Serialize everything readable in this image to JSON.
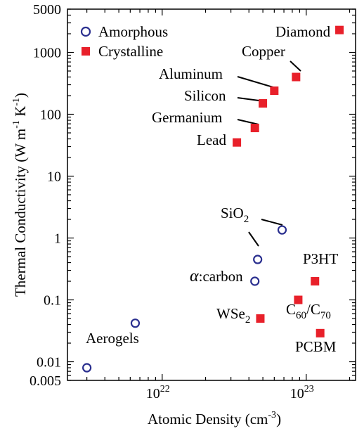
{
  "chart_data": {
    "type": "scatter",
    "xlabel": "Atomic Density (cm",
    "xlabel_exp": "-3",
    "xlabel_close": ")",
    "ylabel": "Thermal Conductivity (W m",
    "ylabel_exp1": "-1",
    "ylabel_mid": " K",
    "ylabel_exp2": "-1",
    "ylabel_close": ")",
    "x_scale": "log",
    "y_scale": "log",
    "xlim": [
      2.2e+21,
      2.2e+23
    ],
    "ylim": [
      0.005,
      5000
    ],
    "x_tick_values": [
      1e+22,
      1e+23
    ],
    "x_ticks": [
      {
        "base": "10",
        "exp": "22"
      },
      {
        "base": "10",
        "exp": "23"
      }
    ],
    "y_tick_values": [
      0.005,
      0.01,
      0.1,
      1,
      10,
      100,
      1000,
      5000
    ],
    "y_ticks": [
      "0.005",
      "0.01",
      "0.1",
      "1",
      "10",
      "100",
      "1000",
      "5000"
    ],
    "grid": false,
    "legend_position": "top-left",
    "series": [
      {
        "name": "Amorphous",
        "marker": "open-circle",
        "color": "#2a2f8f",
        "points": [
          {
            "x": 3e+21,
            "y": 0.008,
            "label": "Aerogels"
          },
          {
            "x": 6.5e+21,
            "y": 0.042,
            "label": ""
          },
          {
            "x": 4.4e+22,
            "y": 0.2,
            "label": "α:carbon"
          },
          {
            "x": 4.6e+22,
            "y": 0.45,
            "label": ""
          },
          {
            "x": 6.8e+22,
            "y": 1.35,
            "label": "SiO2"
          }
        ]
      },
      {
        "name": "Crystalline",
        "marker": "filled-square",
        "color": "#e8202a",
        "points": [
          {
            "x": 1.7e+23,
            "y": 2300,
            "label": "Diamond"
          },
          {
            "x": 8.5e+22,
            "y": 400,
            "label": "Copper"
          },
          {
            "x": 6e+22,
            "y": 240,
            "label": "Aluminum"
          },
          {
            "x": 5e+22,
            "y": 150,
            "label": "Silicon"
          },
          {
            "x": 4.4e+22,
            "y": 60,
            "label": "Germanium"
          },
          {
            "x": 3.3e+22,
            "y": 35,
            "label": "Lead"
          },
          {
            "x": 1.15e+23,
            "y": 0.2,
            "label": "P3HT"
          },
          {
            "x": 8.8e+22,
            "y": 0.1,
            "label": "C60/C70"
          },
          {
            "x": 4.8e+22,
            "y": 0.05,
            "label": "WSe2"
          },
          {
            "x": 1.25e+23,
            "y": 0.029,
            "label": "PCBM"
          }
        ]
      }
    ],
    "annotations": {
      "diamond": "Diamond",
      "copper": "Copper",
      "aluminum": "Aluminum",
      "silicon": "Silicon",
      "germanium": "Germanium",
      "lead": "Lead",
      "sio2_base": "SiO",
      "sio2_sub": "2",
      "alpha": "α",
      "carbon": ":carbon",
      "p3ht": "P3HT",
      "c_base": "C",
      "c_sub1": "60",
      "slash": "/C",
      "c_sub2": "70",
      "wse_base": "WSe",
      "wse_sub": "2",
      "pcbm": "PCBM",
      "aerogels": "Aerogels"
    }
  }
}
